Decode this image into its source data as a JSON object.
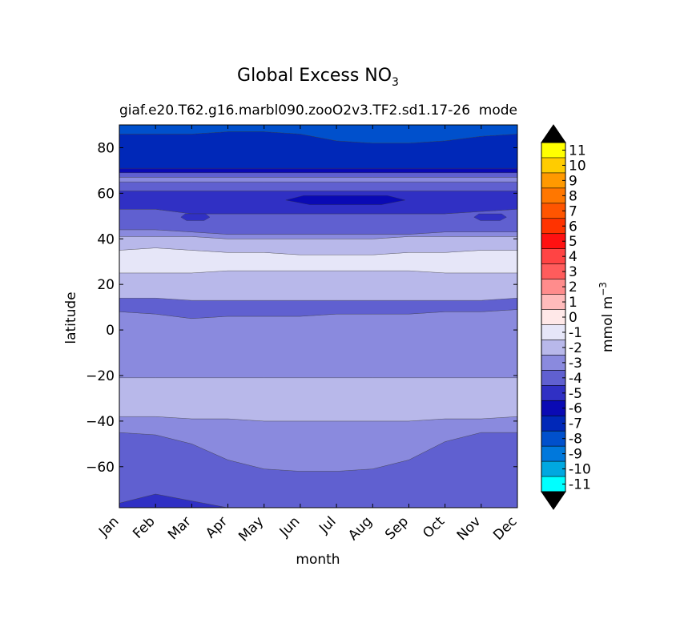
{
  "chart_data": {
    "type": "heatmap",
    "title": "Global Excess NO",
    "title_subscript": "3",
    "subtitle_left": "giaf.e20.T62.g16.marbl090.zooO2v3.TF2.sd1.17-26",
    "subtitle_right": "mode",
    "xlabel": "month",
    "ylabel": "latitude",
    "categories": [
      "Jan",
      "Feb",
      "Mar",
      "Apr",
      "May",
      "Jun",
      "Jul",
      "Aug",
      "Sep",
      "Oct",
      "Nov",
      "Dec"
    ],
    "ylim": [
      -78,
      90
    ],
    "yticks": [
      -60,
      -40,
      -20,
      0,
      20,
      40,
      60,
      80
    ],
    "ytick_labels": [
      "−60",
      "−40",
      "−20",
      "0",
      "20",
      "40",
      "60",
      "80"
    ],
    "colorbar": {
      "label_text": "mmol m",
      "label_superscript": "−3",
      "levels": [
        11,
        10,
        9,
        8,
        7,
        6,
        5,
        4,
        3,
        2,
        1,
        0,
        -1,
        -2,
        -3,
        -4,
        -5,
        -6,
        -7,
        -8,
        -9,
        -10,
        -11
      ],
      "level_labels": [
        "11",
        "10",
        "9",
        "8",
        "7",
        "6",
        "5",
        "4",
        "3",
        "2",
        "1",
        "0",
        "-1",
        "-2",
        "-3",
        "-4",
        "-5",
        "-6",
        "-7",
        "-8",
        "-9",
        "-10",
        "-11"
      ],
      "colors_top_to_bottom": [
        "#ffff00",
        "#ffcc00",
        "#ff9900",
        "#ff7700",
        "#ff5500",
        "#ff3300",
        "#ff1111",
        "#ff4444",
        "#ff5c5c",
        "#ff8c8c",
        "#ffbbbb",
        "#ffe8e8",
        "#e6e6f8",
        "#b8b8ea",
        "#8a8ade",
        "#6060d0",
        "#3030c4",
        "#0a0ab4",
        "#0028b8",
        "#0050cc",
        "#0078dc",
        "#00a8e0",
        "#00ffff"
      ],
      "over_color": "#000000",
      "under_color": "#000000"
    },
    "bands": [
      {
        "name": "south-polar-core",
        "value": -4,
        "color": "#3030c4",
        "lower_edge": [
          -78,
          -78,
          -78,
          -78,
          -78,
          -78,
          -78,
          -78,
          -78,
          -78,
          -78,
          -78
        ],
        "upper_edge": [
          -76,
          -72,
          -75,
          -78,
          -78,
          -78,
          -78,
          -78,
          -78,
          -78,
          -78,
          -78
        ]
      },
      {
        "name": "southern-ocean-low",
        "value": -3,
        "color": "#6060d0",
        "lower_edge": [
          -76,
          -72,
          -75,
          -78,
          -78,
          -78,
          -78,
          -78,
          -78,
          -78,
          -78,
          -78
        ],
        "upper_edge": [
          -45,
          -46,
          -50,
          -57,
          -61,
          -62,
          -62,
          -61,
          -57,
          -49,
          -45,
          -45
        ]
      },
      {
        "name": "southern-mid",
        "value": -2,
        "color": "#8a8ade",
        "lower_edge": [
          -45,
          -46,
          -50,
          -57,
          -61,
          -62,
          -62,
          -61,
          -57,
          -49,
          -45,
          -45
        ],
        "upper_edge": [
          -38,
          -38,
          -39,
          -39,
          -40,
          -40,
          -40,
          -40,
          -40,
          -39,
          -39,
          -38
        ]
      },
      {
        "name": "subtropical-south",
        "value": -1,
        "color": "#b8b8ea",
        "lower_edge": [
          -38,
          -38,
          -39,
          -39,
          -40,
          -40,
          -40,
          -40,
          -40,
          -39,
          -39,
          -38
        ],
        "upper_edge": [
          -21,
          -21,
          -21,
          -21,
          -21,
          -21,
          -21,
          -21,
          -21,
          -21,
          -21,
          -21
        ]
      },
      {
        "name": "tropical",
        "value": -2,
        "color": "#8a8ade",
        "lower_edge": [
          -21,
          -21,
          -21,
          -21,
          -21,
          -21,
          -21,
          -21,
          -21,
          -21,
          -21,
          -21
        ],
        "upper_edge": [
          8,
          7,
          5,
          6,
          6,
          6,
          7,
          7,
          7,
          8,
          8,
          9
        ]
      },
      {
        "name": "north-equatorial",
        "value": -3,
        "color": "#6060d0",
        "lower_edge": [
          8,
          7,
          5,
          6,
          6,
          6,
          7,
          7,
          7,
          8,
          8,
          9
        ],
        "upper_edge": [
          14,
          14,
          13,
          13,
          13,
          13,
          13,
          13,
          13,
          13,
          13,
          14
        ]
      },
      {
        "name": "subtropical-north-low",
        "value": -1,
        "color": "#b8b8ea",
        "lower_edge": [
          14,
          14,
          13,
          13,
          13,
          13,
          13,
          13,
          13,
          13,
          13,
          14
        ],
        "upper_edge": [
          25,
          25,
          25,
          26,
          26,
          26,
          26,
          26,
          26,
          25,
          25,
          25
        ]
      },
      {
        "name": "subtropical-north-gyre",
        "value": 0,
        "color": "#e6e6f8",
        "lower_edge": [
          25,
          25,
          25,
          26,
          26,
          26,
          26,
          26,
          26,
          25,
          25,
          25
        ],
        "upper_edge": [
          35,
          36,
          35,
          34,
          34,
          33,
          33,
          33,
          34,
          34,
          35,
          35
        ]
      },
      {
        "name": "north-mid",
        "value": -1,
        "color": "#b8b8ea",
        "lower_edge": [
          35,
          36,
          35,
          34,
          34,
          33,
          33,
          33,
          34,
          34,
          35,
          35
        ],
        "upper_edge": [
          41,
          41,
          41,
          40,
          40,
          40,
          40,
          40,
          41,
          41,
          41,
          41
        ]
      },
      {
        "name": "north-temperate",
        "value": -2,
        "color": "#8a8ade",
        "lower_edge": [
          41,
          41,
          41,
          40,
          40,
          40,
          40,
          40,
          41,
          41,
          41,
          41
        ],
        "upper_edge": [
          44,
          44,
          43,
          42,
          42,
          42,
          42,
          42,
          42,
          43,
          43,
          43
        ]
      },
      {
        "name": "subpolar-low",
        "value": -3,
        "color": "#6060d0",
        "lower_edge": [
          44,
          44,
          43,
          42,
          42,
          42,
          42,
          42,
          42,
          43,
          43,
          43
        ],
        "upper_edge": [
          53,
          53,
          51,
          51,
          51,
          51,
          51,
          51,
          51,
          51,
          52,
          53
        ]
      },
      {
        "name": "subpolar-gyre",
        "value": -4,
        "color": "#3030c4",
        "lower_edge": [
          53,
          53,
          51,
          51,
          51,
          51,
          51,
          51,
          51,
          51,
          52,
          53
        ],
        "upper_edge": [
          61,
          61,
          61,
          61,
          61,
          61,
          61,
          61,
          61,
          61,
          61,
          61
        ]
      },
      {
        "name": "subpolar-upper",
        "value": -3,
        "color": "#6060d0",
        "lower_edge": [
          61,
          61,
          61,
          61,
          61,
          61,
          61,
          61,
          61,
          61,
          61,
          61
        ],
        "upper_edge": [
          65,
          65,
          65,
          65,
          65,
          65,
          65,
          65,
          65,
          65,
          65,
          65
        ]
      },
      {
        "name": "subarctic-transition",
        "value": -2,
        "color": "#8a8ade",
        "lower_edge": [
          65,
          65,
          65,
          65,
          65,
          65,
          65,
          65,
          65,
          65,
          65,
          65
        ],
        "upper_edge": [
          67,
          67,
          67,
          67,
          67,
          67,
          67,
          67,
          67,
          67,
          67,
          67
        ]
      },
      {
        "name": "subarctic-low",
        "value": -3,
        "color": "#6060d0",
        "lower_edge": [
          67,
          67,
          67,
          67,
          67,
          67,
          67,
          67,
          67,
          67,
          67,
          67
        ],
        "upper_edge": [
          69,
          69,
          69,
          69,
          69,
          69,
          69,
          69,
          69,
          69,
          69,
          69
        ]
      },
      {
        "name": "subarctic-strip",
        "value": -5,
        "color": "#0a0ab4",
        "lower_edge": [
          69,
          69,
          69,
          69,
          69,
          69,
          69,
          69,
          69,
          69,
          69,
          69
        ],
        "upper_edge": [
          71,
          71,
          71,
          71,
          71,
          71,
          71,
          71,
          71,
          71,
          71,
          71
        ]
      },
      {
        "name": "arctic",
        "value": -6,
        "color": "#0028b8",
        "lower_edge": [
          71,
          71,
          71,
          71,
          71,
          71,
          71,
          71,
          71,
          71,
          71,
          71
        ],
        "upper_edge": [
          86,
          86,
          86,
          87,
          87,
          86,
          83,
          82,
          82,
          83,
          85,
          86
        ]
      },
      {
        "name": "arctic-cap",
        "value": -7,
        "color": "#0050cc",
        "lower_edge": [
          86,
          86,
          86,
          87,
          87,
          86,
          83,
          82,
          82,
          83,
          85,
          86
        ],
        "upper_edge": [
          90,
          90,
          90,
          90,
          90,
          90,
          90,
          90,
          90,
          90,
          90,
          90
        ]
      }
    ],
    "patches": [
      {
        "name": "june-core-minimum",
        "value": -5,
        "color": "#0a0ab4",
        "month_range": [
          4.6,
          7.9
        ],
        "lat_range": [
          55,
          59
        ]
      },
      {
        "name": "subpolar-spring-lens",
        "value": -4,
        "color": "#3030c4",
        "month_range": [
          1.7,
          2.5
        ],
        "lat_range": [
          48,
          51
        ]
      },
      {
        "name": "subpolar-autumn-lens",
        "value": -4,
        "color": "#3030c4",
        "month_range": [
          9.8,
          10.7
        ],
        "lat_range": [
          48,
          51
        ]
      }
    ]
  }
}
